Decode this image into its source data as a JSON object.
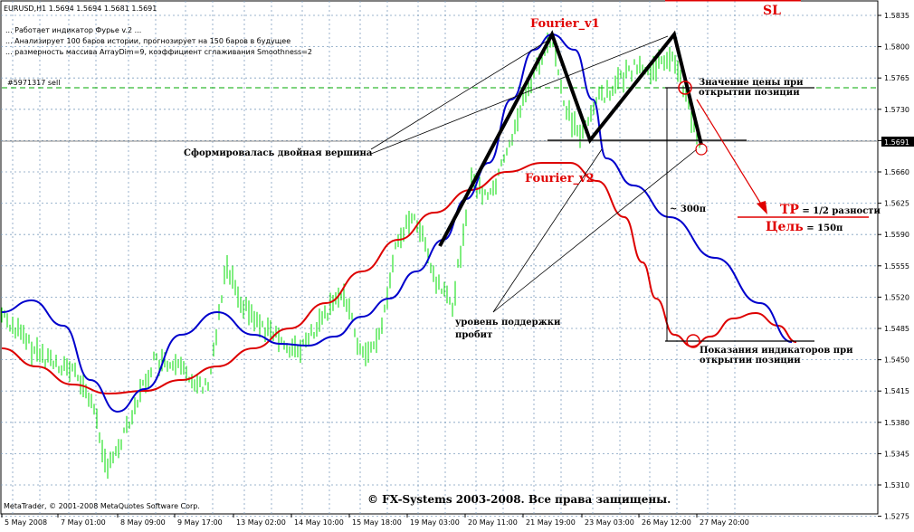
{
  "header": {
    "symbol_line": "EURUSD,H1  1.5694 1.5694 1.5681 1.5691",
    "info_lines": [
      "... Работает индикатор Фурье v.2    ...",
      "... Анализирует 100 баров истории, прогнозирует на 150 баров в будущее",
      "... размерность массива ArrayDim=9, коэффициент сглаживания Smoothness=2"
    ],
    "order_label": "#5971317 sell",
    "price_badge": "1.5691"
  },
  "annotations": {
    "fourier_v1": "Fourier_v1",
    "fourier_v2": "Fourier_v2",
    "sl": "SL",
    "double_top": "Сформировалась двойная вершина",
    "support_line1": "уровень поддержки",
    "support_line2": "пробит",
    "price_at_open_1": "Значение цены при",
    "price_at_open_2": "открытии позиции",
    "distance": "~ 300п",
    "tp_main": "ТР",
    "tp_rest": " = 1/2 разности",
    "target_main": "Цель",
    "target_rest": " = 150п",
    "indicators_at_open_1": "Показания индикаторов при",
    "indicators_at_open_2": "открытии позиции"
  },
  "footer": {
    "copyright": "© FX-Systems 2003-2008. Все права защищены.",
    "metatrader": "MetaTrader, © 2001-2008 MetaQuotes Software Corp."
  },
  "price_axis": [
    "1.5835",
    "1.5800",
    "1.5765",
    "1.5730",
    "1.5695",
    "1.5660",
    "1.5625",
    "1.5590",
    "1.5555",
    "1.5520",
    "1.5485",
    "1.5450",
    "1.5415",
    "1.5380",
    "1.5345",
    "1.5310",
    "1.5275"
  ],
  "time_axis": [
    "5 May 2008",
    "7 May 01:00",
    "8 May 09:00",
    "9 May 17:00",
    "13 May 02:00",
    "14 May 10:00",
    "15 May 18:00",
    "19 May 03:00",
    "20 May 11:00",
    "21 May 19:00",
    "23 May 03:00",
    "26 May 12:00",
    "27 May 20:00"
  ],
  "colors": {
    "background": "#ffffff",
    "grid": "#7f9fbf",
    "bars": "#00dd00",
    "fourier_v1": "#0000cc",
    "fourier_v2": "#dd0000",
    "pattern": "#000000",
    "order_line": "#00aa00"
  }
}
